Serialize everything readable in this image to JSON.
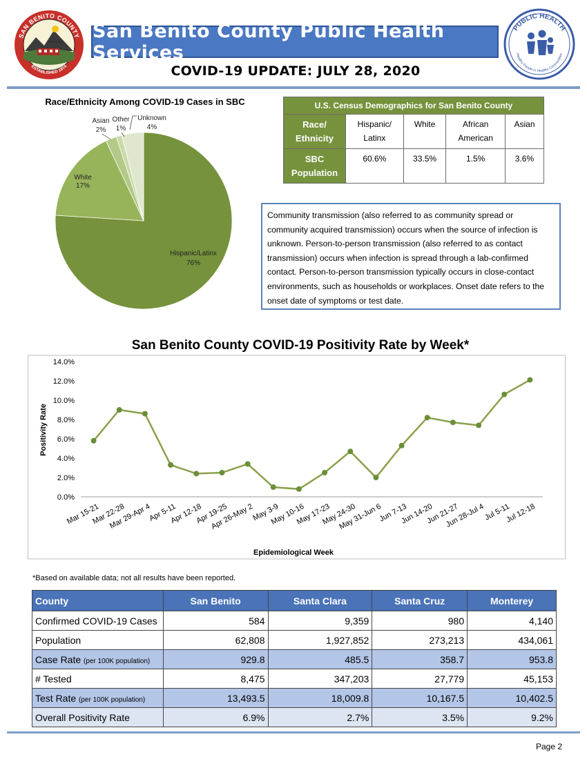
{
  "header": {
    "left_logo_text": "SAN BENITO COUNTY",
    "left_logo_established": "ESTABLISHED 1874",
    "left_logo_town": "HOLLISTER",
    "right_logo_top": "PUBLIC HEALTH",
    "right_logo_bottom": "Healthy People in Healthy Communities",
    "banner_title": "San Benito County Public Health Services",
    "update_title": "COVID-19 UPDATE: JULY 28, 2020"
  },
  "pie": {
    "title": "Race/Ethnicity Among COVID-19 Cases in SBC",
    "labels": {
      "hispanic": "Hispanic/Latinx",
      "hispanic_pct": "76%",
      "white": "White",
      "white_pct": "17%",
      "asian": "Asian",
      "asian_pct": "2%",
      "other": "Other",
      "other_pct": "1%",
      "unknown": "Unknown",
      "unknown_pct": "4%"
    }
  },
  "census": {
    "title": "U.S. Census Demographics for San Benito County",
    "row1_head_line1": "Race/",
    "row1_head_line2": "Ethnicity",
    "row2_head_line1": "SBC",
    "row2_head_line2": "Population",
    "cols": [
      {
        "line1": "Hispanic/",
        "line2": "Latinx",
        "value": "60.6%"
      },
      {
        "line1": "White",
        "line2": "",
        "value": "33.5%"
      },
      {
        "line1": "African",
        "line2": "American",
        "value": "1.5%"
      },
      {
        "line1": "Asian",
        "line2": "",
        "value": "3.6%"
      }
    ]
  },
  "info_text": "Community transmission (also referred to as community spread or community acquired transmission) occurs when the source of infection is unknown.  Person-to-person transmission (also referred to as contact transmission) occurs when infection is spread through a lab-confirmed contact.  Person-to-person transmission typically occurs in close-contact environments, such as households or workplaces.  Onset date refers to the onset date of symptoms or test date.",
  "chart_data": [
    {
      "type": "pie",
      "title": "Race/Ethnicity Among COVID-19 Cases in SBC",
      "categories": [
        "Hispanic/Latinx",
        "White",
        "Asian",
        "Other",
        "Unknown"
      ],
      "values": [
        76,
        17,
        2,
        1,
        4
      ],
      "colors": [
        "#76923c",
        "#98b45a",
        "#b3c987",
        "#c9d9a8",
        "#dfe8cd"
      ]
    },
    {
      "type": "line",
      "title": "San Benito County COVID-19 Positivity Rate by Week*",
      "xlabel": "Epidemiological Week",
      "ylabel": "Positivity Rate",
      "categories": [
        "Mar 15-21",
        "Mar 22-28",
        "Mar 29-Apr 4",
        "Apr 5-11",
        "Apr 12-18",
        "Apr 19-25",
        "Apr 26-May 2",
        "May 3-9",
        "May 10-16",
        "May 17-23",
        "May 24-30",
        "May 31-Jun 6",
        "Jun 7-13",
        "Jun 14-20",
        "Jun 21-27",
        "Jun 28-Jul 4",
        "Jul 5-11",
        "Jul 12-18"
      ],
      "values": [
        5.8,
        9.0,
        8.6,
        3.3,
        2.4,
        2.5,
        3.4,
        1.0,
        0.8,
        2.5,
        4.7,
        2.0,
        5.3,
        8.2,
        7.7,
        7.4,
        10.6,
        12.1
      ],
      "ylim": [
        0,
        14
      ],
      "yticks": [
        "0.0%",
        "2.0%",
        "4.0%",
        "6.0%",
        "8.0%",
        "10.0%",
        "12.0%",
        "14.0%"
      ],
      "line_color": "#8aa04a",
      "marker_color": "#6b8e3a"
    }
  ],
  "footnote": "*Based on available data; not all results have been reported.",
  "county_table": {
    "headers": [
      "County",
      "San Benito",
      "Santa Clara",
      "Santa Cruz",
      "Monterey"
    ],
    "rows": [
      {
        "label": "Confirmed COVID-19 Cases",
        "sub": "",
        "values": [
          "584",
          "9,359",
          "980",
          "4,140"
        ],
        "style": "plain"
      },
      {
        "label": "Population",
        "sub": "",
        "values": [
          "62,808",
          "1,927,852",
          "273,213",
          "434,061"
        ],
        "style": "plain"
      },
      {
        "label": "Case Rate",
        "sub": "(per 100K population)",
        "values": [
          "929.8",
          "485.5",
          "358.7",
          "953.8"
        ],
        "style": "alt"
      },
      {
        "label": "# Tested",
        "sub": "",
        "values": [
          "8,475",
          "347,203",
          "27,779",
          "45,153"
        ],
        "style": "plain"
      },
      {
        "label": "Test Rate",
        "sub": "(per 100K population)",
        "values": [
          "13,493.5",
          "18,009.8",
          "10,167.5",
          "10,402.5"
        ],
        "style": "alt"
      },
      {
        "label": "Overall Positivity Rate",
        "sub": "",
        "values": [
          "6.9%",
          "2.7%",
          "3.5%",
          "9.2%"
        ],
        "style": "last"
      }
    ]
  },
  "page_label": "Page 2"
}
